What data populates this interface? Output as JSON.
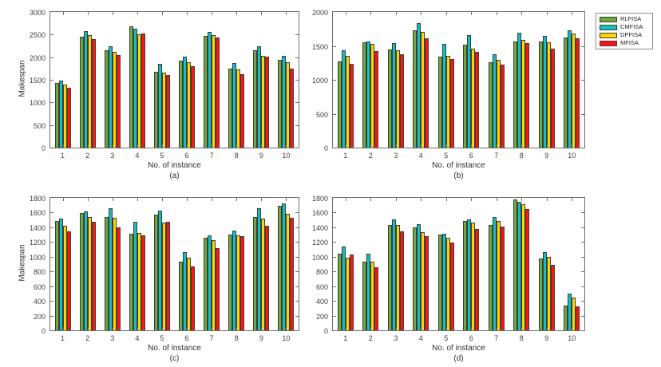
{
  "figure": {
    "background": "#ffffff",
    "axis_color": "#6e6e6e",
    "bar_edge_color": "#3c3c3c"
  },
  "legend": {
    "position": "top-right",
    "entries": [
      {
        "label": "RLFISA",
        "color": "#6FA93A"
      },
      {
        "label": "CMFISA",
        "color": "#14BFC2"
      },
      {
        "label": "DPFISA",
        "color": "#FFD400"
      },
      {
        "label": "MFISA",
        "color": "#FF1410"
      }
    ]
  },
  "chart_data": [
    {
      "type": "bar",
      "panel_label": "(a)",
      "xlabel": "No. of instance",
      "ylabel": "Makespan",
      "categories": [
        "1",
        "2",
        "3",
        "4",
        "5",
        "6",
        "7",
        "8",
        "9",
        "10"
      ],
      "ylim": [
        0,
        3000
      ],
      "ytick": 500,
      "grid": false,
      "series": [
        {
          "name": "RLFISA",
          "color": "#6FA93A",
          "values": [
            1430,
            2445,
            2150,
            2675,
            1685,
            1930,
            2475,
            1745,
            2155,
            1935
          ]
        },
        {
          "name": "CMFISA",
          "color": "#14BFC2",
          "values": [
            1490,
            2580,
            2235,
            2630,
            1850,
            2010,
            2565,
            1865,
            2245,
            2035
          ]
        },
        {
          "name": "DPFISA",
          "color": "#FFD400",
          "values": [
            1400,
            2485,
            2125,
            2510,
            1665,
            1890,
            2485,
            1735,
            2025,
            1885
          ]
        },
        {
          "name": "MFISA",
          "color": "#FF1410",
          "values": [
            1320,
            2400,
            2040,
            2525,
            1600,
            1795,
            2430,
            1620,
            2015,
            1740
          ]
        }
      ]
    },
    {
      "type": "bar",
      "panel_label": "(b)",
      "xlabel": "No. of instance",
      "ylabel": "",
      "categories": [
        "1",
        "2",
        "3",
        "4",
        "5",
        "6",
        "7",
        "8",
        "9",
        "10"
      ],
      "ylim": [
        0,
        2000
      ],
      "ytick": 500,
      "grid": false,
      "series": [
        {
          "name": "RLFISA",
          "color": "#6FA93A",
          "values": [
            1265,
            1550,
            1445,
            1735,
            1345,
            1515,
            1255,
            1565,
            1565,
            1625
          ]
        },
        {
          "name": "CMFISA",
          "color": "#14BFC2",
          "values": [
            1440,
            1565,
            1545,
            1840,
            1525,
            1660,
            1380,
            1700,
            1645,
            1735
          ]
        },
        {
          "name": "DPFISA",
          "color": "#FFD400",
          "values": [
            1355,
            1530,
            1435,
            1710,
            1350,
            1455,
            1290,
            1585,
            1555,
            1680
          ]
        },
        {
          "name": "MFISA",
          "color": "#FF1410",
          "values": [
            1230,
            1425,
            1380,
            1610,
            1305,
            1410,
            1220,
            1545,
            1460,
            1615
          ]
        }
      ]
    },
    {
      "type": "bar",
      "panel_label": "(c)",
      "xlabel": "No. of instance",
      "ylabel": "Makespan",
      "categories": [
        "1",
        "2",
        "3",
        "4",
        "5",
        "6",
        "7",
        "8",
        "9",
        "10"
      ],
      "ylim": [
        0,
        1800
      ],
      "ytick": 200,
      "grid": false,
      "series": [
        {
          "name": "RLFISA",
          "color": "#6FA93A",
          "values": [
            1490,
            1590,
            1540,
            1310,
            1570,
            935,
            1260,
            1305,
            1535,
            1690
          ]
        },
        {
          "name": "CMFISA",
          "color": "#14BFC2",
          "values": [
            1520,
            1620,
            1655,
            1475,
            1630,
            1060,
            1290,
            1355,
            1655,
            1725
          ]
        },
        {
          "name": "DPFISA",
          "color": "#FFD400",
          "values": [
            1420,
            1540,
            1525,
            1325,
            1460,
            985,
            1230,
            1290,
            1515,
            1580
          ]
        },
        {
          "name": "MFISA",
          "color": "#FF1410",
          "values": [
            1340,
            1475,
            1400,
            1295,
            1475,
            865,
            1120,
            1275,
            1420,
            1525
          ]
        }
      ]
    },
    {
      "type": "bar",
      "panel_label": "(d)",
      "xlabel": "No. of instance",
      "ylabel": "",
      "categories": [
        "1",
        "2",
        "3",
        "4",
        "5",
        "6",
        "7",
        "8",
        "9",
        "10"
      ],
      "ylim": [
        0,
        1800
      ],
      "ytick": 200,
      "grid": false,
      "series": [
        {
          "name": "RLFISA",
          "color": "#6FA93A",
          "values": [
            1040,
            930,
            1435,
            1395,
            1305,
            1490,
            1430,
            1780,
            975,
            340
          ]
        },
        {
          "name": "CMFISA",
          "color": "#14BFC2",
          "values": [
            1140,
            1045,
            1505,
            1440,
            1310,
            1510,
            1535,
            1745,
            1060,
            495
          ]
        },
        {
          "name": "DPFISA",
          "color": "#FFD400",
          "values": [
            985,
            935,
            1435,
            1330,
            1255,
            1460,
            1485,
            1715,
            995,
            450
          ]
        },
        {
          "name": "MFISA",
          "color": "#FF1410",
          "values": [
            1025,
            855,
            1345,
            1275,
            1190,
            1380,
            1405,
            1645,
            885,
            330
          ]
        }
      ]
    }
  ]
}
